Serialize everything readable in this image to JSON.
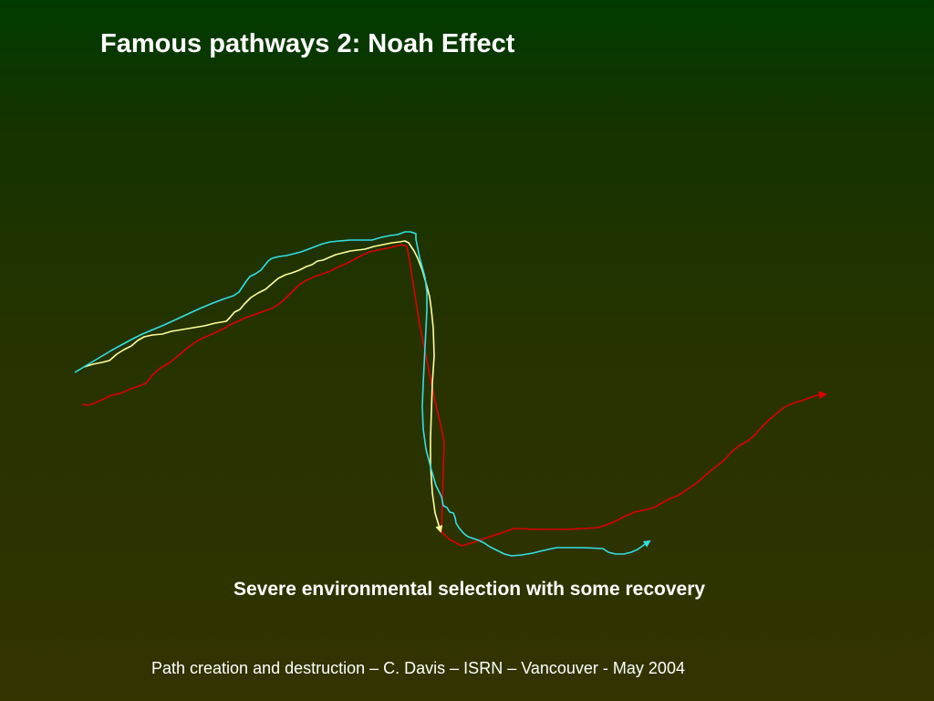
{
  "slide": {
    "title": "Famous pathways 2: Noah Effect",
    "caption": "Severe environmental selection with some recovery",
    "footer": "Path creation and destruction – C. Davis – ISRN – Vancouver - May 2004"
  },
  "colors": {
    "background_top": "#003b00",
    "background_bottom": "#333300",
    "text": "#ffffff",
    "cyan_path": "#33e0e6",
    "yellow_path": "#ffff99",
    "red_path": "#dd0000"
  }
}
